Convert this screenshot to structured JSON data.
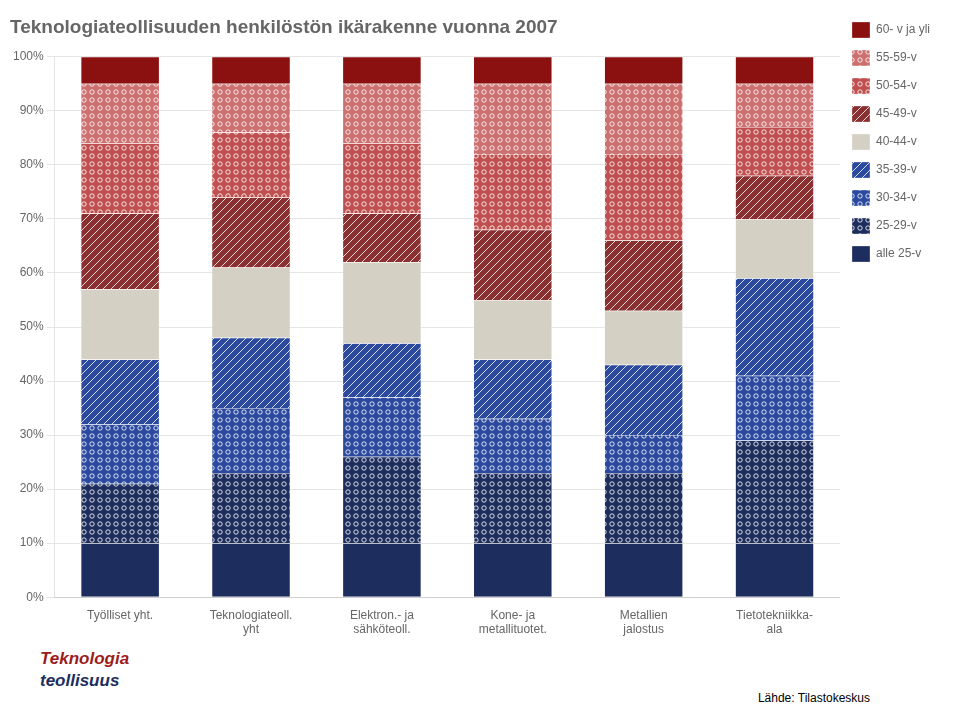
{
  "chart_data": {
    "type": "bar",
    "title": "Teknologiateollisuuden henkilöstön ikärakenne vuonna 2007",
    "categories": [
      "Työlliset yht.",
      "Teknologiateoll.\nyht",
      "Elektron.- ja\nsähköteoll.",
      "Kone- ja\nmetallituotet.",
      "Metallien\njalostus",
      "Tietotekniikka-\nala"
    ],
    "series": [
      {
        "name": "alle 25-v",
        "color": "#1C2D5E",
        "values": [
          10,
          10,
          10,
          10,
          10,
          10
        ]
      },
      {
        "name": "25-29-v",
        "color": "#1C2D5E",
        "values": [
          11,
          13,
          16,
          13,
          13,
          19
        ]
      },
      {
        "name": "30-34-v",
        "color": "#2B4A9F",
        "values": [
          11,
          12,
          11,
          10,
          7,
          12
        ]
      },
      {
        "name": "35-39-v",
        "color": "#2B4A9F",
        "values": [
          12,
          13,
          10,
          11,
          13,
          18
        ]
      },
      {
        "name": "40-44-v",
        "color": "#D4D0C4",
        "values": [
          13,
          13,
          15,
          11,
          10,
          11
        ]
      },
      {
        "name": "45-49-v",
        "color": "#8B3030",
        "values": [
          14,
          13,
          9,
          13,
          13,
          8
        ]
      },
      {
        "name": "50-54-v",
        "color": "#C05050",
        "values": [
          13,
          12,
          13,
          14,
          16,
          9
        ]
      },
      {
        "name": "55-59-v",
        "color": "#CC7070",
        "values": [
          11,
          9,
          11,
          13,
          13,
          8
        ]
      },
      {
        "name": "60- v ja yli",
        "color": "#8B1010",
        "values": [
          5,
          5,
          5,
          5,
          5,
          5
        ]
      }
    ],
    "stacked": true,
    "ylim": [
      0,
      100
    ],
    "yticks": [
      {
        "value": 0,
        "label": "0%"
      },
      {
        "value": 10,
        "label": "10%"
      },
      {
        "value": 20,
        "label": "20%"
      },
      {
        "value": 30,
        "label": "30%"
      },
      {
        "value": 40,
        "label": "40%"
      },
      {
        "value": 50,
        "label": "50%"
      },
      {
        "value": 60,
        "label": "60%"
      },
      {
        "value": 70,
        "label": "70%"
      },
      {
        "value": 80,
        "label": "80%"
      },
      {
        "value": 90,
        "label": "90%"
      },
      {
        "value": 100,
        "label": "100%"
      }
    ],
    "grid": true,
    "legend": "right",
    "annotations": [
      {
        "text": "Lähde: Tilastokeskus"
      },
      {
        "text": "Teknologia",
        "color": "#9B1C1C"
      },
      {
        "text": "teollisuus",
        "color": "#1C2D5E"
      }
    ]
  }
}
